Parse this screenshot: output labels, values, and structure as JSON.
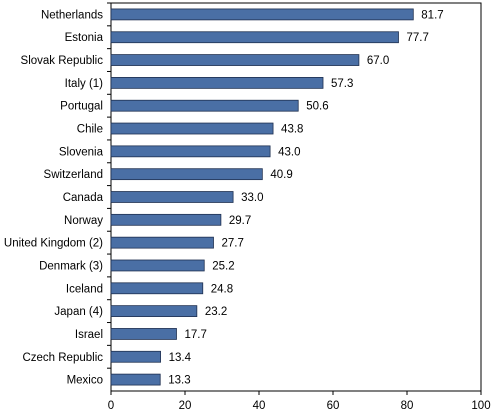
{
  "chart_data": {
    "type": "bar",
    "orientation": "horizontal",
    "title": "",
    "xlabel": "",
    "ylabel": "",
    "xlim": [
      0,
      100
    ],
    "x_ticks": [
      0,
      20,
      40,
      60,
      80,
      100
    ],
    "grid": false,
    "bar_color": "#4a6fa5",
    "bar_edge_color": "#1f3050",
    "categories": [
      "Netherlands",
      "Estonia",
      "Slovak Republic",
      "Italy (1)",
      "Portugal",
      "Chile",
      "Slovenia",
      "Switzerland",
      "Canada",
      "Norway",
      "United Kingdom (2)",
      "Denmark (3)",
      "Iceland",
      "Japan (4)",
      "Israel",
      "Czech Republic",
      "Mexico"
    ],
    "values": [
      81.7,
      77.7,
      67.0,
      57.3,
      50.6,
      43.8,
      43.0,
      40.9,
      33.0,
      29.7,
      27.7,
      25.2,
      24.8,
      23.2,
      17.7,
      13.4,
      13.3
    ],
    "value_labels": [
      "81.7",
      "77.7",
      "67.0",
      "57.3",
      "50.6",
      "43.8",
      "43.0",
      "40.9",
      "33.0",
      "29.7",
      "27.7",
      "25.2",
      "24.8",
      "23.2",
      "17.7",
      "13.4",
      "13.3"
    ]
  }
}
